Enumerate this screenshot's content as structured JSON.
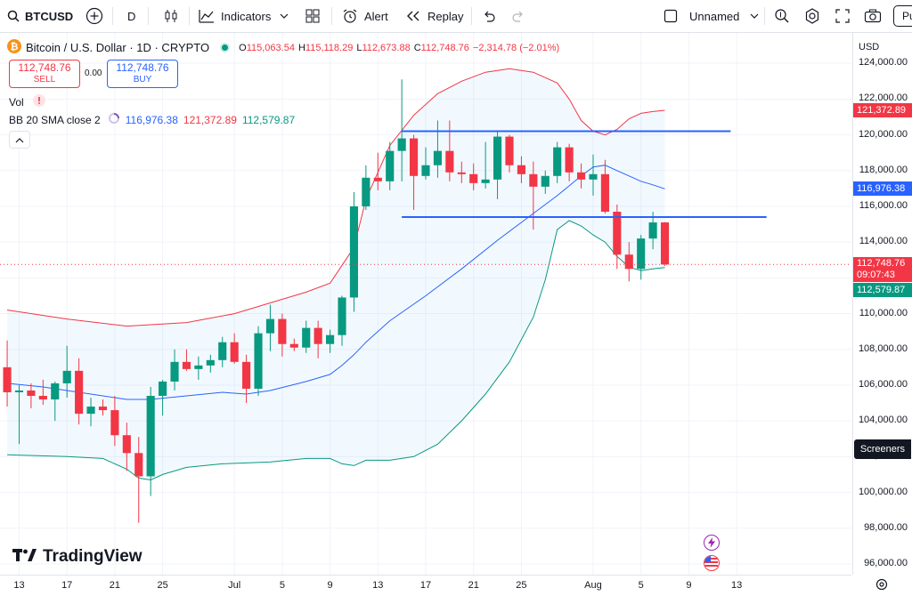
{
  "toolbar": {
    "symbol": "BTCUSD",
    "interval": "D",
    "indicators_label": "Indicators",
    "alert_label": "Alert",
    "replay_label": "Replay",
    "layout_name": "Unnamed",
    "publish_label": "Pu"
  },
  "legend": {
    "title": "Bitcoin / U.S. Dollar · 1D · CRYPTO",
    "o_label": "O",
    "o_value": "115,063.54",
    "h_label": "H",
    "h_value": "115,118.29",
    "l_label": "L",
    "l_value": "112,673.88",
    "c_label": "C",
    "c_value": "112,748.76",
    "change": "−2,314.78 (−2.01%)",
    "sell_price": "112,748.76",
    "sell_label": "SELL",
    "spread": "0.00",
    "buy_price": "112,748.76",
    "buy_label": "BUY",
    "vol_label": "Vol",
    "bb_label": "BB 20 SMA close 2",
    "bb_basis": "116,976.38",
    "bb_upper": "121,372.89",
    "bb_lower": "112,579.87"
  },
  "price_axis": {
    "currency": "USD",
    "ticks": [
      "124,000.00",
      "122,000.00",
      "120,000.00",
      "118,000.00",
      "116,000.00",
      "114,000.00",
      "112,000.00",
      "110,000.00",
      "108,000.00",
      "106,000.00",
      "104,000.00",
      "102,000.00",
      "100,000.00",
      "98,000.00",
      "96,000.00"
    ],
    "tick_values": [
      124000,
      122000,
      120000,
      118000,
      116000,
      114000,
      112000,
      110000,
      108000,
      106000,
      104000,
      102000,
      100000,
      98000,
      96000
    ],
    "tag_upper": "121,372.89",
    "tag_basis": "116,976.38",
    "tag_last": "112,748.76",
    "tag_countdown": "09:07:43",
    "tag_lower": "112,579.87",
    "screeners_label": "Screeners"
  },
  "time_axis": {
    "labels": [
      "13",
      "17",
      "21",
      "25",
      "Jul",
      "5",
      "9",
      "13",
      "17",
      "21",
      "25",
      "Aug",
      "5",
      "9",
      "13"
    ]
  },
  "watermark": "TradingView",
  "colors": {
    "up": "#089981",
    "down": "#f23645",
    "basis": "#2962ff",
    "upper": "#f23645",
    "lower": "#089981",
    "band_fill": "#2196f3",
    "hline": "#2962ff"
  },
  "chart_data": {
    "type": "candlestick",
    "start_date": "2025-06-12",
    "candles": [
      {
        "o": 107000,
        "h": 108500,
        "l": 104800,
        "c": 105600
      },
      {
        "o": 105600,
        "h": 106000,
        "l": 102700,
        "c": 105700
      },
      {
        "o": 105700,
        "h": 106100,
        "l": 104700,
        "c": 105400
      },
      {
        "o": 105400,
        "h": 106300,
        "l": 104900,
        "c": 105200
      },
      {
        "o": 105200,
        "h": 106200,
        "l": 104000,
        "c": 106100
      },
      {
        "o": 106100,
        "h": 108200,
        "l": 105300,
        "c": 106800
      },
      {
        "o": 106800,
        "h": 107500,
        "l": 103800,
        "c": 104400
      },
      {
        "o": 104400,
        "h": 105300,
        "l": 103700,
        "c": 104800
      },
      {
        "o": 104800,
        "h": 105200,
        "l": 104300,
        "c": 104600
      },
      {
        "o": 104600,
        "h": 105400,
        "l": 102600,
        "c": 103200
      },
      {
        "o": 103200,
        "h": 103900,
        "l": 101200,
        "c": 102200
      },
      {
        "o": 102200,
        "h": 103100,
        "l": 98300,
        "c": 100900
      },
      {
        "o": 100900,
        "h": 105900,
        "l": 99800,
        "c": 105400
      },
      {
        "o": 105400,
        "h": 106300,
        "l": 104300,
        "c": 106200
      },
      {
        "o": 106200,
        "h": 108000,
        "l": 105700,
        "c": 107300
      },
      {
        "o": 107300,
        "h": 108000,
        "l": 106800,
        "c": 106900
      },
      {
        "o": 106900,
        "h": 107600,
        "l": 106300,
        "c": 107100
      },
      {
        "o": 107100,
        "h": 107700,
        "l": 106700,
        "c": 107400
      },
      {
        "o": 107400,
        "h": 108700,
        "l": 107000,
        "c": 108400
      },
      {
        "o": 108400,
        "h": 108900,
        "l": 107200,
        "c": 107300
      },
      {
        "o": 107300,
        "h": 107700,
        "l": 105000,
        "c": 105800
      },
      {
        "o": 105800,
        "h": 109300,
        "l": 105400,
        "c": 108900
      },
      {
        "o": 108900,
        "h": 110500,
        "l": 107900,
        "c": 109700
      },
      {
        "o": 109700,
        "h": 110000,
        "l": 107600,
        "c": 108300
      },
      {
        "o": 108300,
        "h": 108600,
        "l": 107900,
        "c": 108100
      },
      {
        "o": 108100,
        "h": 109600,
        "l": 107800,
        "c": 109200
      },
      {
        "o": 109200,
        "h": 109600,
        "l": 107500,
        "c": 108300
      },
      {
        "o": 108300,
        "h": 109100,
        "l": 107800,
        "c": 108800
      },
      {
        "o": 108800,
        "h": 111000,
        "l": 108200,
        "c": 110900
      },
      {
        "o": 110900,
        "h": 116800,
        "l": 110100,
        "c": 116000
      },
      {
        "o": 116000,
        "h": 118300,
        "l": 115800,
        "c": 117600
      },
      {
        "o": 117600,
        "h": 119000,
        "l": 116900,
        "c": 117400
      },
      {
        "o": 117400,
        "h": 119600,
        "l": 116900,
        "c": 119100
      },
      {
        "o": 119100,
        "h": 123100,
        "l": 117400,
        "c": 119800
      },
      {
        "o": 119800,
        "h": 120000,
        "l": 115800,
        "c": 117700
      },
      {
        "o": 117700,
        "h": 119300,
        "l": 117500,
        "c": 118300
      },
      {
        "o": 118300,
        "h": 120800,
        "l": 117600,
        "c": 119100
      },
      {
        "o": 119100,
        "h": 120800,
        "l": 117400,
        "c": 117900
      },
      {
        "o": 117900,
        "h": 118500,
        "l": 117300,
        "c": 117800
      },
      {
        "o": 117800,
        "h": 118400,
        "l": 116900,
        "c": 117300
      },
      {
        "o": 117300,
        "h": 119600,
        "l": 117000,
        "c": 117500
      },
      {
        "o": 117500,
        "h": 120200,
        "l": 116400,
        "c": 119900
      },
      {
        "o": 119900,
        "h": 120000,
        "l": 117900,
        "c": 118300
      },
      {
        "o": 118300,
        "h": 118800,
        "l": 117300,
        "c": 117800
      },
      {
        "o": 117800,
        "h": 118500,
        "l": 114700,
        "c": 117100
      },
      {
        "o": 117100,
        "h": 118000,
        "l": 116700,
        "c": 117700
      },
      {
        "o": 117700,
        "h": 119600,
        "l": 117300,
        "c": 119300
      },
      {
        "o": 119300,
        "h": 119500,
        "l": 117400,
        "c": 117900
      },
      {
        "o": 117900,
        "h": 118400,
        "l": 117000,
        "c": 117500
      },
      {
        "o": 117500,
        "h": 118900,
        "l": 116600,
        "c": 117800
      },
      {
        "o": 117800,
        "h": 118600,
        "l": 115600,
        "c": 115700
      },
      {
        "o": 115700,
        "h": 116100,
        "l": 112500,
        "c": 113300
      },
      {
        "o": 113300,
        "h": 114000,
        "l": 111800,
        "c": 112500
      },
      {
        "o": 112500,
        "h": 114400,
        "l": 111900,
        "c": 114200
      },
      {
        "o": 114200,
        "h": 115700,
        "l": 113600,
        "c": 115100
      },
      {
        "o": 115100,
        "h": 115120,
        "l": 112670,
        "c": 112750
      }
    ],
    "bb_upper": [
      {
        "i": 0,
        "v": 110200
      },
      {
        "i": 5,
        "v": 109700
      },
      {
        "i": 10,
        "v": 109300
      },
      {
        "i": 15,
        "v": 109500
      },
      {
        "i": 19,
        "v": 110000
      },
      {
        "i": 22,
        "v": 110600
      },
      {
        "i": 25,
        "v": 111200
      },
      {
        "i": 27,
        "v": 111700
      },
      {
        "i": 29,
        "v": 113700
      },
      {
        "i": 30,
        "v": 116400
      },
      {
        "i": 32,
        "v": 119400
      },
      {
        "i": 34,
        "v": 121100
      },
      {
        "i": 36,
        "v": 122300
      },
      {
        "i": 38,
        "v": 123000
      },
      {
        "i": 40,
        "v": 123500
      },
      {
        "i": 42,
        "v": 123700
      },
      {
        "i": 44,
        "v": 123500
      },
      {
        "i": 46,
        "v": 122900
      },
      {
        "i": 47,
        "v": 122000
      },
      {
        "i": 48,
        "v": 120800
      },
      {
        "i": 49,
        "v": 120200
      },
      {
        "i": 50,
        "v": 120000
      },
      {
        "i": 51,
        "v": 120300
      },
      {
        "i": 52,
        "v": 120900
      },
      {
        "i": 53,
        "v": 121200
      },
      {
        "i": 54,
        "v": 121300
      },
      {
        "i": 55,
        "v": 121370
      }
    ],
    "bb_basis": [
      {
        "i": 0,
        "v": 106100
      },
      {
        "i": 3,
        "v": 105900
      },
      {
        "i": 7,
        "v": 105500
      },
      {
        "i": 10,
        "v": 105200
      },
      {
        "i": 12,
        "v": 105200
      },
      {
        "i": 15,
        "v": 105400
      },
      {
        "i": 18,
        "v": 105600
      },
      {
        "i": 20,
        "v": 105500
      },
      {
        "i": 22,
        "v": 105700
      },
      {
        "i": 25,
        "v": 106200
      },
      {
        "i": 27,
        "v": 106600
      },
      {
        "i": 28,
        "v": 107100
      },
      {
        "i": 29,
        "v": 107700
      },
      {
        "i": 30,
        "v": 108400
      },
      {
        "i": 32,
        "v": 109600
      },
      {
        "i": 35,
        "v": 111000
      },
      {
        "i": 38,
        "v": 112500
      },
      {
        "i": 41,
        "v": 114100
      },
      {
        "i": 44,
        "v": 115600
      },
      {
        "i": 46,
        "v": 116600
      },
      {
        "i": 48,
        "v": 117700
      },
      {
        "i": 49,
        "v": 118200
      },
      {
        "i": 50,
        "v": 118300
      },
      {
        "i": 51,
        "v": 118000
      },
      {
        "i": 52,
        "v": 117700
      },
      {
        "i": 53,
        "v": 117400
      },
      {
        "i": 54,
        "v": 117200
      },
      {
        "i": 55,
        "v": 116980
      }
    ],
    "bb_lower": [
      {
        "i": 0,
        "v": 102100
      },
      {
        "i": 5,
        "v": 102000
      },
      {
        "i": 8,
        "v": 101900
      },
      {
        "i": 10,
        "v": 101300
      },
      {
        "i": 11,
        "v": 100800
      },
      {
        "i": 12,
        "v": 100700
      },
      {
        "i": 13,
        "v": 101000
      },
      {
        "i": 15,
        "v": 101400
      },
      {
        "i": 18,
        "v": 101600
      },
      {
        "i": 22,
        "v": 101700
      },
      {
        "i": 25,
        "v": 101900
      },
      {
        "i": 27,
        "v": 101900
      },
      {
        "i": 28,
        "v": 101600
      },
      {
        "i": 29,
        "v": 101500
      },
      {
        "i": 30,
        "v": 101800
      },
      {
        "i": 32,
        "v": 101800
      },
      {
        "i": 34,
        "v": 102000
      },
      {
        "i": 36,
        "v": 102700
      },
      {
        "i": 38,
        "v": 104000
      },
      {
        "i": 40,
        "v": 105500
      },
      {
        "i": 42,
        "v": 107300
      },
      {
        "i": 44,
        "v": 109800
      },
      {
        "i": 45,
        "v": 111900
      },
      {
        "i": 46,
        "v": 114700
      },
      {
        "i": 47,
        "v": 115200
      },
      {
        "i": 48,
        "v": 114900
      },
      {
        "i": 49,
        "v": 114400
      },
      {
        "i": 50,
        "v": 114000
      },
      {
        "i": 51,
        "v": 113200
      },
      {
        "i": 52,
        "v": 112600
      },
      {
        "i": 53,
        "v": 112400
      },
      {
        "i": 54,
        "v": 112500
      },
      {
        "i": 55,
        "v": 112580
      }
    ],
    "hlines": [
      {
        "i0": 33,
        "i1": 60.5,
        "v": 120200
      },
      {
        "i0": 33,
        "i1": 63.5,
        "v": 115400
      }
    ],
    "last_price": 112748.76,
    "ylim": [
      95400,
      125700
    ],
    "xlim": [
      -0.6,
      70.6
    ]
  }
}
